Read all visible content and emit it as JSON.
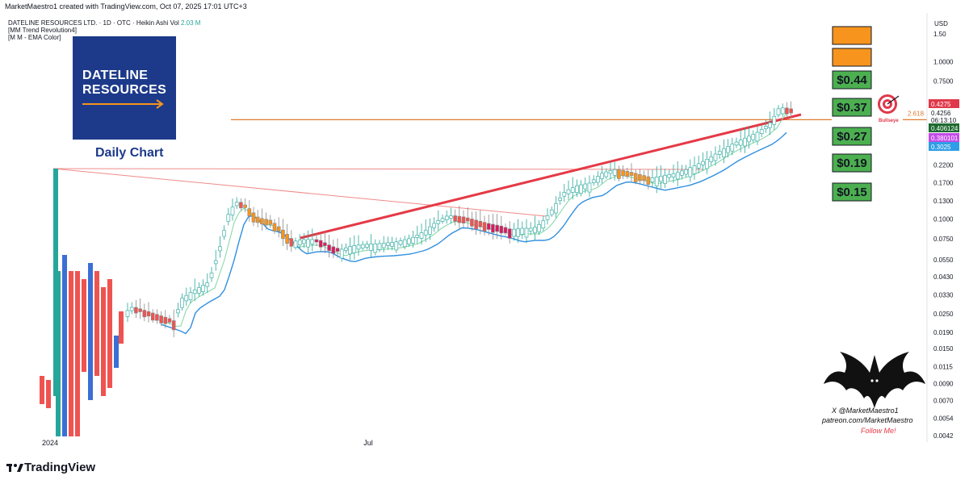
{
  "header": {
    "created_line": "MarketMaestro1 created with TradingView.com, Oct 07, 2025 17:01 UTC+3"
  },
  "legend": {
    "symbol_line": "DATELINE RESOURCES LTD. · 1D · OTC · Heikin Ashi",
    "vol_label": "Vol",
    "vol_value": "2.03 M",
    "indicator_1": "[MM Trend Revolution4]",
    "indicator_2": "[M M - EMA Color]"
  },
  "logo": {
    "line1": "DATELINE",
    "line2": "RESOURCES"
  },
  "subtitle": "Daily Chart",
  "currency": "USD",
  "targets": [
    "",
    "",
    "$0.44",
    "$0.37",
    "$0.27",
    "$0.19",
    "$0.15"
  ],
  "target_colors": [
    "#f7941d",
    "#f7941d",
    "#4caf50",
    "#4caf50",
    "#4caf50",
    "#4caf50",
    "#4caf50"
  ],
  "bullseye": {
    "label": "Bullseye",
    "fib_value": "2.618"
  },
  "price_badges": [
    {
      "text": "0.4275",
      "color": "#e0384a"
    },
    {
      "text": "0.4256",
      "color": "#ffffff"
    },
    {
      "text": "06:13:10",
      "color": "#ffffff"
    },
    {
      "text": "0.406124",
      "color": "#1e6b30"
    },
    {
      "text": "0.380101",
      "color": "#c44be8"
    },
    {
      "text": "0.3025",
      "color": "#2f9ee6"
    }
  ],
  "branding": {
    "handle": "X @MarketMaestro1",
    "patreon": "patreon.com/MarketMaestro",
    "follow": "Follow Me!"
  },
  "footer": {
    "logo_text": "TradingView"
  },
  "chart_data": {
    "type": "candlestick",
    "scale": "log",
    "y_ticks": [
      1.5,
      1.0,
      0.75,
      0.55,
      0.425,
      0.3,
      0.22,
      0.17,
      0.13,
      0.1,
      0.075,
      0.055,
      0.043,
      0.033,
      0.025,
      0.019,
      0.015,
      0.0115,
      0.009,
      0.007,
      0.0054,
      0.0042
    ],
    "y_tick_labels": [
      "1.50",
      "1.0000",
      "0.7500",
      "0.5500",
      "",
      "",
      "0.2200",
      "0.1700",
      "0.1300",
      "0.1000",
      "0.0750",
      "0.0550",
      "0.0430",
      "0.0330",
      "0.0250",
      "0.0190",
      "0.0150",
      "0.0115",
      "0.0090",
      "0.0070",
      "0.0054",
      "0.0042"
    ],
    "x_labels": [
      "2024",
      "Jul"
    ],
    "resistance_level": 0.4275,
    "colors": {
      "up": "#26a69a",
      "down": "#ef5350",
      "hollow_up": "#ffffff",
      "ema": "#2f8fe0",
      "trend_line": "#e53946",
      "horizontal": "#e07a2e"
    },
    "key_prices": {
      "last": 0.4256,
      "ema_fast": 0.406124,
      "ema_mid": 0.380101,
      "ema_slow": 0.3025
    }
  }
}
